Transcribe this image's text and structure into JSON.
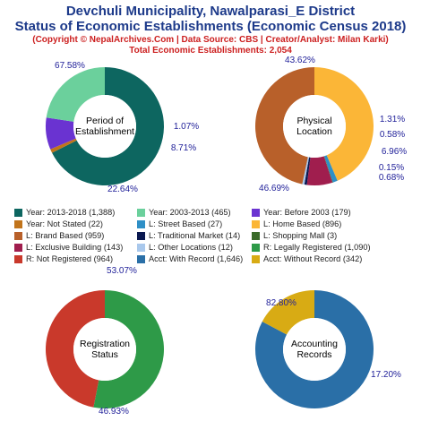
{
  "header": {
    "title1": "Devchuli Municipality, Nawalparasi_E District",
    "title2": "Status of Economic Establishments (Economic Census 2018)",
    "copyright": "(Copyright © NepalArchives.Com | Data Source: CBS | Creator/Analyst: Milan Karki)",
    "total": "Total Economic Establishments: 2,054"
  },
  "chart_data": [
    {
      "type": "pie",
      "center_label": [
        "Period of",
        "Establishment"
      ],
      "slices": [
        {
          "label": "Year: 2013-2018",
          "value": 1388,
          "pct": "67.58%",
          "color": "#0d6660"
        },
        {
          "label": "Year: Not Stated",
          "value": 22,
          "pct": "1.07%",
          "color": "#c1741b"
        },
        {
          "label": "Year: Before 2003",
          "value": 179,
          "pct": "8.71%",
          "color": "#6a33d1"
        },
        {
          "label": "Year: 2003-2013",
          "value": 465,
          "pct": "22.64%",
          "color": "#6bd09c"
        }
      ]
    },
    {
      "type": "pie",
      "center_label": [
        "Physical",
        "Location"
      ],
      "slices": [
        {
          "label": "L: Home Based",
          "value": 896,
          "pct": "43.62%",
          "color": "#fbb637"
        },
        {
          "label": "L: Street Based",
          "value": 27,
          "pct": "1.31%",
          "color": "#2e8fc6"
        },
        {
          "label": "L: Shopping Mall",
          "value": 3,
          "pct": "0.15%",
          "color": "#3a6b2a"
        },
        {
          "label": "L: Exclusive Building",
          "value": 143,
          "pct": "6.96%",
          "color": "#a01e4e"
        },
        {
          "label": "L: Traditional Market",
          "value": 14,
          "pct": "0.68%",
          "color": "#0a1850"
        },
        {
          "label": "L: Other Locations",
          "value": 12,
          "pct": "0.58%",
          "color": "#a9c8ec"
        },
        {
          "label": "L: Brand Based",
          "value": 959,
          "pct": "46.69%",
          "color": "#b8602a"
        }
      ]
    },
    {
      "type": "pie",
      "center_label": [
        "Registration",
        "Status"
      ],
      "slices": [
        {
          "label": "R: Legally Registered",
          "value": 1090,
          "pct": "53.07%",
          "color": "#2e9a48"
        },
        {
          "label": "R: Not Registered",
          "value": 964,
          "pct": "46.93%",
          "color": "#c9392b"
        }
      ]
    },
    {
      "type": "pie",
      "center_label": [
        "Accounting",
        "Records"
      ],
      "slices": [
        {
          "label": "Acct: With Record",
          "value": 1646,
          "pct": "82.80%",
          "color": "#2a6fa7"
        },
        {
          "label": "Acct: Without Record",
          "value": 342,
          "pct": "17.20%",
          "color": "#d8ab14"
        }
      ]
    }
  ],
  "legend": [
    {
      "text": "Year: 2013-2018 (1,388)",
      "color": "#0d6660"
    },
    {
      "text": "Year: 2003-2013 (465)",
      "color": "#6bd09c"
    },
    {
      "text": "Year: Before 2003 (179)",
      "color": "#6a33d1"
    },
    {
      "text": "Year: Not Stated (22)",
      "color": "#c1741b"
    },
    {
      "text": "L: Street Based (27)",
      "color": "#2e8fc6"
    },
    {
      "text": "L: Home Based (896)",
      "color": "#fbb637"
    },
    {
      "text": "L: Brand Based (959)",
      "color": "#b8602a"
    },
    {
      "text": "L: Traditional Market (14)",
      "color": "#0a1850"
    },
    {
      "text": "L: Shopping Mall (3)",
      "color": "#3a6b2a"
    },
    {
      "text": "L: Exclusive Building (143)",
      "color": "#a01e4e"
    },
    {
      "text": "L: Other Locations (12)",
      "color": "#a9c8ec"
    },
    {
      "text": "R: Legally Registered (1,090)",
      "color": "#2e9a48"
    },
    {
      "text": "R: Not Registered (964)",
      "color": "#c9392b"
    },
    {
      "text": "Acct: With Record (1,646)",
      "color": "#2a6fa7"
    },
    {
      "text": "Acct: Without Record (342)",
      "color": "#d8ab14"
    }
  ]
}
